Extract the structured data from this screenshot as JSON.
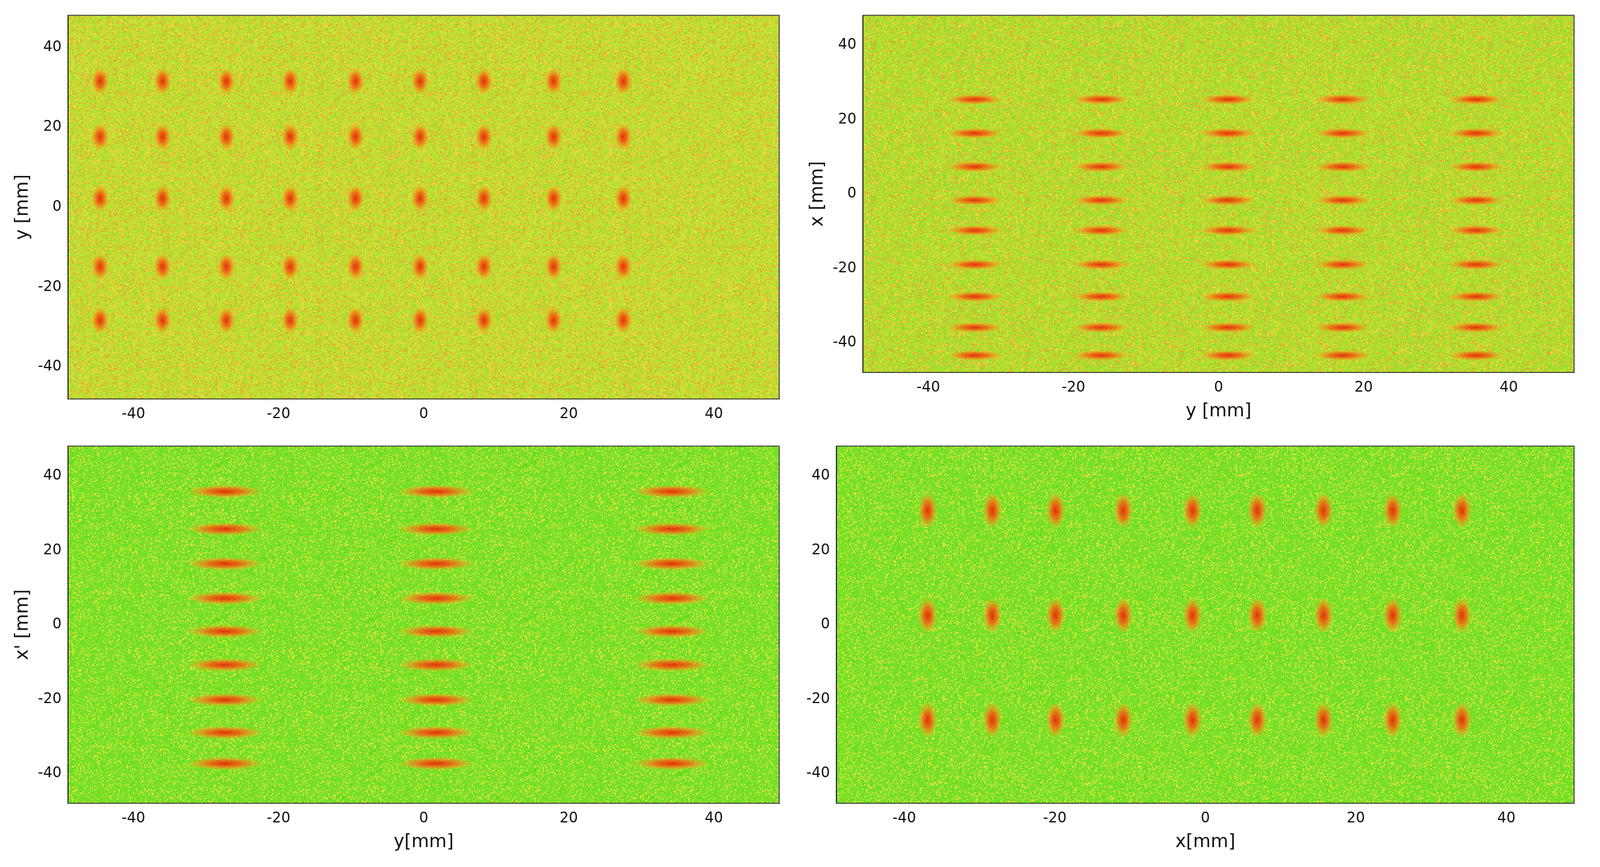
{
  "chart_data": [
    {
      "type": "scatter",
      "y_label": "y [mm]",
      "color": "#e0300c",
      "marker": "ellipse-vertical",
      "xlim": [
        -49,
        49
      ],
      "ylim": [
        -48,
        48
      ],
      "xticks": [
        -40,
        -20,
        0,
        20,
        40
      ],
      "yticks": [
        -40,
        -20,
        0,
        20,
        40
      ],
      "grid": false,
      "x": [
        -44.6,
        -36,
        -27.2,
        -18.4,
        -9.4,
        -0.5,
        8.3,
        17.9,
        27.5,
        -44.6,
        -36,
        -27.2,
        -18.4,
        -9.4,
        -0.5,
        8.3,
        17.9,
        27.5,
        -44.6,
        -36,
        -27.2,
        -18.4,
        -9.4,
        -0.5,
        8.3,
        17.9,
        27.5,
        -44.6,
        -36,
        -27.2,
        -18.4,
        -9.4,
        -0.5,
        8.3,
        17.9,
        27.5,
        -44.6,
        -36,
        -27.2,
        -18.4,
        -9.4,
        -0.5,
        8.3,
        17.9,
        27.5
      ],
      "values": [
        31.5,
        31.5,
        31.5,
        31.5,
        31.5,
        31.5,
        31.5,
        31.5,
        31.5,
        17.6,
        17.6,
        17.6,
        17.6,
        17.6,
        17.6,
        17.6,
        17.6,
        17.6,
        2.2,
        2.2,
        2.2,
        2.2,
        2.2,
        2.2,
        2.2,
        2.2,
        2.2,
        -14.9,
        -14.9,
        -14.9,
        -14.9,
        -14.9,
        -14.9,
        -14.9,
        -14.9,
        -14.9,
        -28.3,
        -28.3,
        -28.3,
        -28.3,
        -28.3,
        -28.3,
        -28.3,
        -28.3,
        -28.3
      ]
    },
    {
      "type": "scatter",
      "x_label": "y [mm]",
      "y_label": "x [mm]",
      "color": "#e0300c",
      "marker": "ellipse-horizontal",
      "xlim": [
        -49,
        49
      ],
      "ylim": [
        -48,
        48
      ],
      "xticks": [
        -40,
        -20,
        0,
        20,
        40
      ],
      "yticks": [
        -40,
        -20,
        0,
        20,
        40
      ],
      "grid": false,
      "x": [
        -33.6,
        -16.2,
        1.3,
        17.1,
        35.5,
        -33.6,
        -16.2,
        1.3,
        17.1,
        35.5,
        -33.6,
        -16.2,
        1.3,
        17.1,
        35.5,
        -33.6,
        -16.2,
        1.3,
        17.1,
        35.5,
        -33.6,
        -16.2,
        1.3,
        17.1,
        35.5,
        -33.6,
        -16.2,
        1.3,
        17.1,
        35.5,
        -33.6,
        -16.2,
        1.3,
        17.1,
        35.5,
        -33.6,
        -16.2,
        1.3,
        17.1,
        35.5,
        -33.6,
        -16.2,
        1.3,
        17.1,
        35.5
      ],
      "values": [
        25.4,
        25.4,
        25.4,
        25.4,
        25.4,
        16.3,
        16.3,
        16.3,
        16.3,
        16.3,
        7.3,
        7.3,
        7.3,
        7.3,
        7.3,
        -1.7,
        -1.7,
        -1.7,
        -1.7,
        -1.7,
        -9.8,
        -9.8,
        -9.8,
        -9.8,
        -9.8,
        -19,
        -19,
        -19,
        -19,
        -19,
        -27.6,
        -27.6,
        -27.6,
        -27.6,
        -27.6,
        -35.9,
        -35.9,
        -35.9,
        -35.9,
        -35.9,
        -43.4,
        -43.4,
        -43.4,
        -43.4,
        -43.4
      ]
    },
    {
      "type": "scatter",
      "x_label": "y[mm]",
      "y_label": "x' [mm]",
      "color": "#e0300c",
      "marker": "ellipse-horizontal",
      "xlim": [
        -49,
        49
      ],
      "ylim": [
        -48,
        48
      ],
      "xticks": [
        -40,
        -20,
        0,
        20,
        40
      ],
      "yticks": [
        -40,
        -20,
        0,
        20,
        40
      ],
      "grid": false,
      "x": [
        -27.4,
        1.7,
        34.2,
        -27.4,
        1.7,
        34.2,
        -27.4,
        1.7,
        34.2,
        -27.4,
        1.7,
        34.2,
        -27.4,
        1.7,
        34.2,
        -27.4,
        1.7,
        34.2,
        -27.4,
        1.7,
        34.2,
        -27.4,
        1.7,
        34.2,
        -27.4,
        1.7,
        34.2
      ],
      "values": [
        35.8,
        35.8,
        35.8,
        25.7,
        25.7,
        25.7,
        16.4,
        16.4,
        16.4,
        7.1,
        7.1,
        7.1,
        -1.8,
        -1.8,
        -1.8,
        -10.8,
        -10.8,
        -10.8,
        -20.2,
        -20.2,
        -20.2,
        -29,
        -29,
        -29,
        -37.3,
        -37.3,
        -37.3
      ]
    },
    {
      "type": "scatter",
      "x_label": "x[mm]",
      "color": "#e0300c",
      "marker": "ellipse-vertical",
      "xlim": [
        -49,
        49
      ],
      "ylim": [
        -48,
        48
      ],
      "xticks": [
        -40,
        -20,
        0,
        20,
        40
      ],
      "yticks": [
        -40,
        -20,
        0,
        20,
        40
      ],
      "grid": false,
      "x": [
        -36.9,
        -28.3,
        -19.9,
        -10.9,
        -1.7,
        6.9,
        15.7,
        24.9,
        34.1,
        -36.9,
        -28.3,
        -19.9,
        -10.9,
        -1.7,
        6.9,
        15.7,
        24.9,
        34.1,
        -36.9,
        -28.3,
        -19.9,
        -10.9,
        -1.7,
        6.9,
        15.7,
        24.9,
        34.1
      ],
      "values": [
        30.7,
        30.7,
        30.7,
        30.7,
        30.7,
        30.7,
        30.7,
        30.7,
        30.7,
        2.5,
        2.5,
        2.5,
        2.5,
        2.5,
        2.5,
        2.5,
        2.5,
        2.5,
        -25.6,
        -25.6,
        -25.6,
        -25.6,
        -25.6,
        -25.6,
        -25.6,
        -25.6,
        -25.6
      ]
    }
  ]
}
